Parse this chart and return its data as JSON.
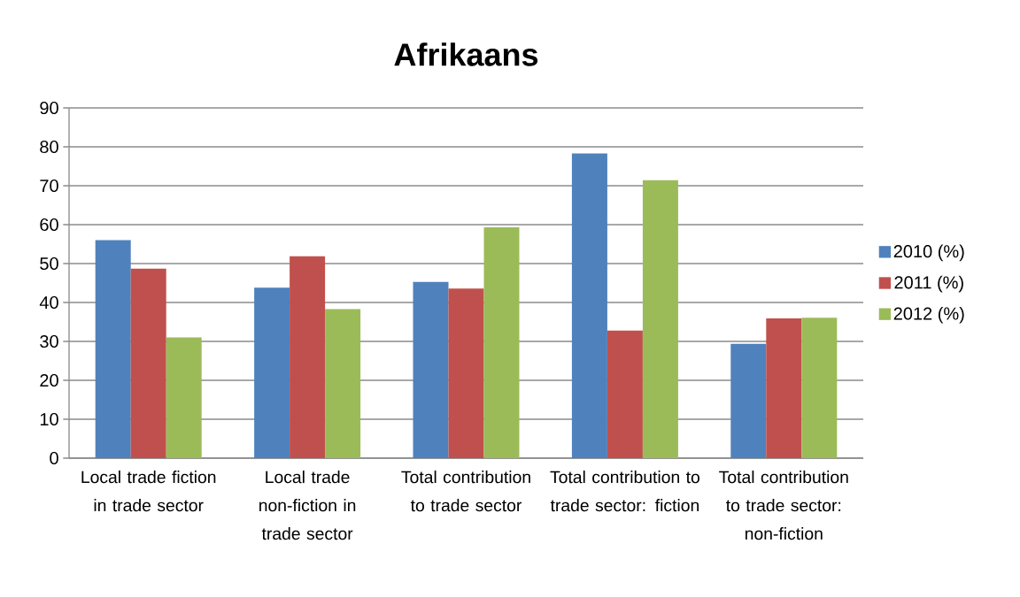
{
  "chart_data": {
    "type": "bar",
    "title": "Afrikaans",
    "categories": [
      "Local trade fiction in trade sector",
      "Local trade non-fiction in trade sector",
      "Total contribution to trade sector",
      "Total contribution to trade sector: fiction",
      "Total contribution to trade sector: non-fiction"
    ],
    "series": [
      {
        "name": "2010 (%)",
        "color": "#4f81bd",
        "values": [
          56.0,
          43.8,
          45.3,
          78.3,
          29.4
        ]
      },
      {
        "name": "2011 (%)",
        "color": "#c0504d",
        "values": [
          48.7,
          51.9,
          43.6,
          32.8,
          35.9
        ]
      },
      {
        "name": "2012 (%)",
        "color": "#9bbb59",
        "values": [
          31.0,
          38.3,
          59.3,
          71.4,
          36.1
        ]
      }
    ],
    "ylim": [
      0,
      90
    ],
    "yticks": [
      0,
      10,
      20,
      30,
      40,
      50,
      60,
      70,
      80,
      90
    ],
    "grid": "y",
    "legend": "right"
  }
}
